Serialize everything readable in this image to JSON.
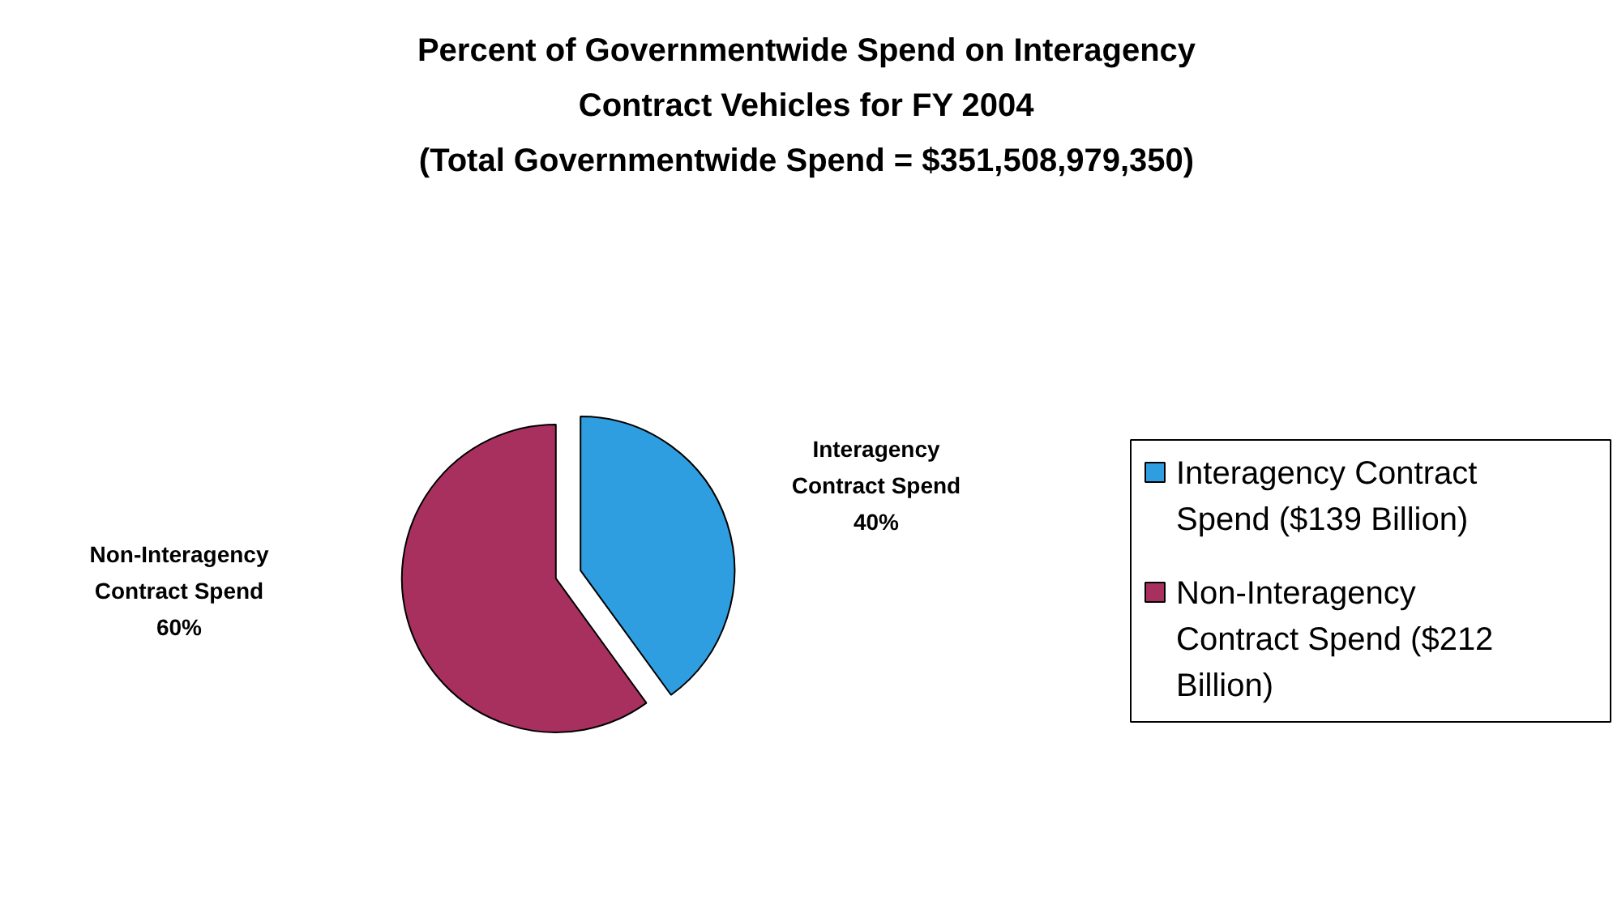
{
  "chart_data": {
    "type": "pie",
    "title": "Percent of Governmentwide Spend on Interagency\nContract Vehicles for FY 2004",
    "subtitle": "(Total Governmentwide Spend = $351,508,979,350)",
    "categories": [
      "Interagency Contract Spend ($139 Billion)",
      "Non-Interagency Contract Spend ($212 Billion)"
    ],
    "values": [
      40,
      60
    ],
    "colors": [
      "#2f9ee0",
      "#a8305e"
    ],
    "value_labels": [
      "Interagency\nContract Spend\n40%",
      "Non-Interagency\nContract Spend\n60%"
    ],
    "legend": "right"
  }
}
